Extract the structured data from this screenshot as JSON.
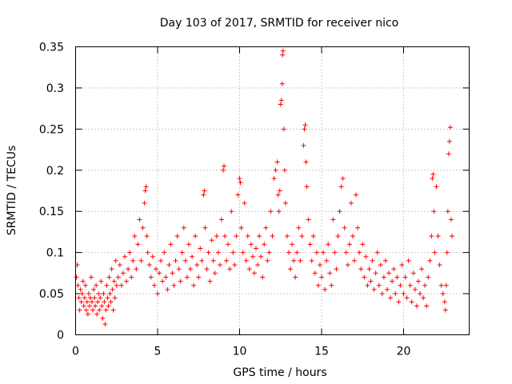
{
  "chart_data": {
    "type": "scatter",
    "title": "Day 103 of 2017, SRMTID for receiver nico",
    "xlabel": "GPS time / hours",
    "ylabel": "SRMTID / TECUs",
    "xlim": [
      0,
      24
    ],
    "ylim": [
      0,
      0.35
    ],
    "xticks": [
      "0",
      "5",
      "10",
      "15",
      "20"
    ],
    "yticks": [
      "0",
      "0.05",
      "0.1",
      "0.15",
      "0.2",
      "0.25",
      "0.3",
      "0.35"
    ],
    "grid": true,
    "marker": "+",
    "color": "#ff0000",
    "series": [
      {
        "name": "SRMTID",
        "points": [
          [
            0.05,
            0.07
          ],
          [
            0.1,
            0.085
          ],
          [
            0.15,
            0.06
          ],
          [
            0.2,
            0.045
          ],
          [
            0.25,
            0.03
          ],
          [
            0.3,
            0.055
          ],
          [
            0.35,
            0.04
          ],
          [
            0.4,
            0.05
          ],
          [
            0.45,
            0.065
          ],
          [
            0.5,
            0.035
          ],
          [
            0.55,
            0.045
          ],
          [
            0.6,
            0.06
          ],
          [
            0.65,
            0.03
          ],
          [
            0.7,
            0.04
          ],
          [
            0.75,
            0.025
          ],
          [
            0.8,
            0.05
          ],
          [
            0.85,
            0.035
          ],
          [
            0.9,
            0.045
          ],
          [
            0.95,
            0.07
          ],
          [
            1.0,
            0.04
          ],
          [
            1.05,
            0.03
          ],
          [
            1.1,
            0.055
          ],
          [
            1.15,
            0.045
          ],
          [
            1.2,
            0.035
          ],
          [
            1.25,
            0.06
          ],
          [
            1.3,
            0.025
          ],
          [
            1.35,
            0.04
          ],
          [
            1.4,
            0.05
          ],
          [
            1.45,
            0.03
          ],
          [
            1.5,
            0.045
          ],
          [
            1.55,
            0.065
          ],
          [
            1.6,
            0.035
          ],
          [
            1.65,
            0.02
          ],
          [
            1.7,
            0.05
          ],
          [
            1.75,
            0.04
          ],
          [
            1.8,
            0.013
          ],
          [
            1.85,
            0.03
          ],
          [
            1.9,
            0.06
          ],
          [
            1.95,
            0.045
          ],
          [
            2.0,
            0.035
          ],
          [
            2.05,
            0.07
          ],
          [
            2.1,
            0.05
          ],
          [
            2.15,
            0.04
          ],
          [
            2.2,
            0.08
          ],
          [
            2.25,
            0.055
          ],
          [
            2.3,
            0.03
          ],
          [
            2.35,
            0.065
          ],
          [
            2.4,
            0.045
          ],
          [
            2.45,
            0.09
          ],
          [
            2.5,
            0.06
          ],
          [
            2.6,
            0.07
          ],
          [
            2.7,
            0.085
          ],
          [
            2.8,
            0.06
          ],
          [
            2.9,
            0.075
          ],
          [
            3.0,
            0.095
          ],
          [
            3.1,
            0.065
          ],
          [
            3.2,
            0.08
          ],
          [
            3.3,
            0.1
          ],
          [
            3.4,
            0.07
          ],
          [
            3.5,
            0.09
          ],
          [
            3.6,
            0.12
          ],
          [
            3.7,
            0.08
          ],
          [
            3.8,
            0.11
          ],
          [
            3.9,
            0.14
          ],
          [
            4.0,
            0.09
          ],
          [
            4.1,
            0.13
          ],
          [
            4.2,
            0.16
          ],
          [
            4.25,
            0.175
          ],
          [
            4.3,
            0.18
          ],
          [
            4.35,
            0.12
          ],
          [
            4.4,
            0.1
          ],
          [
            4.5,
            0.085
          ],
          [
            4.6,
            0.07
          ],
          [
            4.7,
            0.095
          ],
          [
            4.8,
            0.06
          ],
          [
            4.9,
            0.08
          ],
          [
            5.0,
            0.05
          ],
          [
            5.1,
            0.075
          ],
          [
            5.2,
            0.09
          ],
          [
            5.3,
            0.065
          ],
          [
            5.4,
            0.1
          ],
          [
            5.5,
            0.07
          ],
          [
            5.6,
            0.055
          ],
          [
            5.7,
            0.085
          ],
          [
            5.8,
            0.11
          ],
          [
            5.9,
            0.075
          ],
          [
            6.0,
            0.06
          ],
          [
            6.1,
            0.09
          ],
          [
            6.2,
            0.12
          ],
          [
            6.3,
            0.08
          ],
          [
            6.4,
            0.065
          ],
          [
            6.5,
            0.1
          ],
          [
            6.6,
            0.13
          ],
          [
            6.7,
            0.09
          ],
          [
            6.8,
            0.07
          ],
          [
            6.9,
            0.11
          ],
          [
            7.0,
            0.08
          ],
          [
            7.1,
            0.095
          ],
          [
            7.2,
            0.06
          ],
          [
            7.3,
            0.12
          ],
          [
            7.4,
            0.085
          ],
          [
            7.5,
            0.07
          ],
          [
            7.6,
            0.105
          ],
          [
            7.7,
            0.09
          ],
          [
            7.8,
            0.17
          ],
          [
            7.85,
            0.175
          ],
          [
            7.9,
            0.13
          ],
          [
            8.0,
            0.08
          ],
          [
            8.1,
            0.1
          ],
          [
            8.2,
            0.065
          ],
          [
            8.3,
            0.115
          ],
          [
            8.4,
            0.09
          ],
          [
            8.5,
            0.075
          ],
          [
            8.6,
            0.12
          ],
          [
            8.7,
            0.1
          ],
          [
            8.8,
            0.085
          ],
          [
            8.9,
            0.14
          ],
          [
            9.0,
            0.2
          ],
          [
            9.05,
            0.205
          ],
          [
            9.1,
            0.12
          ],
          [
            9.2,
            0.09
          ],
          [
            9.3,
            0.11
          ],
          [
            9.4,
            0.08
          ],
          [
            9.5,
            0.15
          ],
          [
            9.6,
            0.1
          ],
          [
            9.7,
            0.085
          ],
          [
            9.8,
            0.12
          ],
          [
            9.9,
            0.17
          ],
          [
            10.0,
            0.19
          ],
          [
            10.05,
            0.185
          ],
          [
            10.1,
            0.13
          ],
          [
            10.2,
            0.1
          ],
          [
            10.3,
            0.16
          ],
          [
            10.4,
            0.09
          ],
          [
            10.5,
            0.12
          ],
          [
            10.6,
            0.08
          ],
          [
            10.7,
            0.11
          ],
          [
            10.8,
            0.095
          ],
          [
            10.9,
            0.075
          ],
          [
            11.0,
            0.105
          ],
          [
            11.1,
            0.085
          ],
          [
            11.2,
            0.12
          ],
          [
            11.3,
            0.095
          ],
          [
            11.4,
            0.07
          ],
          [
            11.5,
            0.11
          ],
          [
            11.6,
            0.13
          ],
          [
            11.7,
            0.09
          ],
          [
            11.8,
            0.1
          ],
          [
            11.9,
            0.15
          ],
          [
            12.0,
            0.12
          ],
          [
            12.1,
            0.19
          ],
          [
            12.2,
            0.2
          ],
          [
            12.3,
            0.21
          ],
          [
            12.35,
            0.17
          ],
          [
            12.4,
            0.15
          ],
          [
            12.45,
            0.175
          ],
          [
            12.5,
            0.28
          ],
          [
            12.55,
            0.285
          ],
          [
            12.6,
            0.305
          ],
          [
            12.62,
            0.34
          ],
          [
            12.65,
            0.345
          ],
          [
            12.7,
            0.25
          ],
          [
            12.75,
            0.2
          ],
          [
            12.8,
            0.16
          ],
          [
            12.9,
            0.12
          ],
          [
            13.0,
            0.1
          ],
          [
            13.1,
            0.08
          ],
          [
            13.2,
            0.11
          ],
          [
            13.3,
            0.09
          ],
          [
            13.4,
            0.07
          ],
          [
            13.5,
            0.1
          ],
          [
            13.6,
            0.13
          ],
          [
            13.7,
            0.09
          ],
          [
            13.8,
            0.12
          ],
          [
            13.9,
            0.23
          ],
          [
            13.95,
            0.25
          ],
          [
            14.0,
            0.255
          ],
          [
            14.05,
            0.21
          ],
          [
            14.1,
            0.18
          ],
          [
            14.2,
            0.14
          ],
          [
            14.3,
            0.11
          ],
          [
            14.4,
            0.09
          ],
          [
            14.5,
            0.12
          ],
          [
            14.6,
            0.075
          ],
          [
            14.7,
            0.1
          ],
          [
            14.8,
            0.06
          ],
          [
            14.9,
            0.085
          ],
          [
            15.0,
            0.07
          ],
          [
            15.1,
            0.1
          ],
          [
            15.2,
            0.055
          ],
          [
            15.3,
            0.09
          ],
          [
            15.4,
            0.11
          ],
          [
            15.5,
            0.075
          ],
          [
            15.6,
            0.06
          ],
          [
            15.7,
            0.14
          ],
          [
            15.8,
            0.1
          ],
          [
            15.9,
            0.08
          ],
          [
            16.0,
            0.12
          ],
          [
            16.1,
            0.15
          ],
          [
            16.2,
            0.18
          ],
          [
            16.3,
            0.19
          ],
          [
            16.4,
            0.13
          ],
          [
            16.5,
            0.1
          ],
          [
            16.6,
            0.085
          ],
          [
            16.7,
            0.11
          ],
          [
            16.8,
            0.16
          ],
          [
            16.9,
            0.12
          ],
          [
            17.0,
            0.09
          ],
          [
            17.1,
            0.17
          ],
          [
            17.2,
            0.13
          ],
          [
            17.3,
            0.1
          ],
          [
            17.4,
            0.08
          ],
          [
            17.5,
            0.11
          ],
          [
            17.6,
            0.07
          ],
          [
            17.7,
            0.095
          ],
          [
            17.8,
            0.06
          ],
          [
            17.9,
            0.08
          ],
          [
            18.0,
            0.065
          ],
          [
            18.1,
            0.09
          ],
          [
            18.2,
            0.055
          ],
          [
            18.3,
            0.075
          ],
          [
            18.4,
            0.1
          ],
          [
            18.5,
            0.06
          ],
          [
            18.6,
            0.085
          ],
          [
            18.7,
            0.05
          ],
          [
            18.8,
            0.07
          ],
          [
            18.9,
            0.09
          ],
          [
            19.0,
            0.055
          ],
          [
            19.1,
            0.075
          ],
          [
            19.2,
            0.045
          ],
          [
            19.3,
            0.065
          ],
          [
            19.4,
            0.08
          ],
          [
            19.5,
            0.05
          ],
          [
            19.6,
            0.07
          ],
          [
            19.7,
            0.04
          ],
          [
            19.8,
            0.06
          ],
          [
            19.9,
            0.085
          ],
          [
            20.0,
            0.05
          ],
          [
            20.1,
            0.07
          ],
          [
            20.2,
            0.045
          ],
          [
            20.3,
            0.09
          ],
          [
            20.4,
            0.06
          ],
          [
            20.5,
            0.04
          ],
          [
            20.6,
            0.075
          ],
          [
            20.7,
            0.055
          ],
          [
            20.8,
            0.035
          ],
          [
            20.9,
            0.065
          ],
          [
            21.0,
            0.05
          ],
          [
            21.1,
            0.08
          ],
          [
            21.2,
            0.045
          ],
          [
            21.3,
            0.06
          ],
          [
            21.4,
            0.035
          ],
          [
            21.5,
            0.07
          ],
          [
            21.6,
            0.09
          ],
          [
            21.7,
            0.12
          ],
          [
            21.75,
            0.19
          ],
          [
            21.8,
            0.195
          ],
          [
            21.85,
            0.15
          ],
          [
            21.9,
            0.1
          ],
          [
            22.0,
            0.18
          ],
          [
            22.1,
            0.12
          ],
          [
            22.2,
            0.085
          ],
          [
            22.3,
            0.06
          ],
          [
            22.4,
            0.05
          ],
          [
            22.5,
            0.04
          ],
          [
            22.55,
            0.03
          ],
          [
            22.6,
            0.06
          ],
          [
            22.65,
            0.1
          ],
          [
            22.7,
            0.15
          ],
          [
            22.75,
            0.22
          ],
          [
            22.8,
            0.235
          ],
          [
            22.85,
            0.252
          ],
          [
            22.9,
            0.14
          ],
          [
            22.95,
            0.12
          ]
        ]
      }
    ]
  }
}
